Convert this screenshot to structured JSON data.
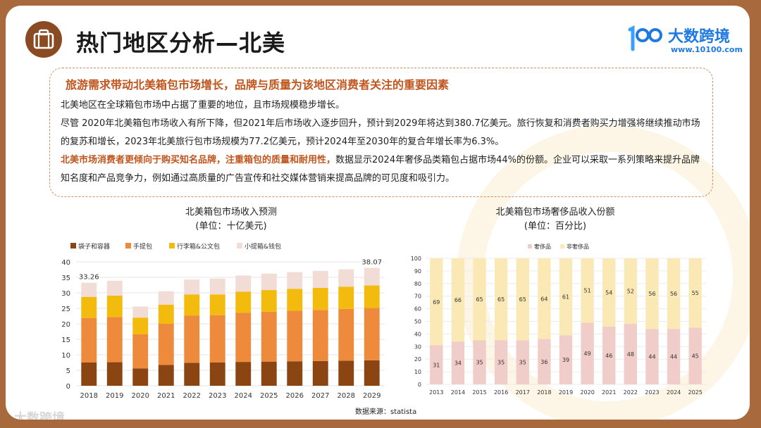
{
  "page_title": "热门地区分析—北美",
  "logo": {
    "name": "大数跨境",
    "url": "www.10100.com"
  },
  "watermark": "大数跨境",
  "insight": {
    "heading": "旅游需求带动北美箱包市场增长，品牌与质量为该地区消费者关注的重要因素",
    "p1": "北美地区在全球箱包市场中占据了重要的地位，且市场规模稳步增长。",
    "p2": "尽管 2020年北美箱包市场收入有所下降，但2021年后市场收入逐步回升，预计到2029年将达到380.7亿美元。旅行恢复和消费者购买力增强将继续推动市场的复苏和增长，2023年北美旅行包市场规模为77.2亿美元，预计2024年至2030年的复合年增长率为6.3%。",
    "p3_highlight": "北美市场消费者更倾向于购买知名品牌，注重箱包的质量和耐用性，",
    "p3_rest": "数据显示2024年奢侈品类箱包占据市场44%的份额。企业可以采取一系列策略来提升品牌知名度和产品竞争力，例如通过高质量的广告宣传和社交媒体营销来提高品牌的可见度和吸引力。"
  },
  "source": "数据来源：statista",
  "colors": {
    "brown": "#8b4513",
    "orange": "#ee8a3c",
    "gold": "#f2bb0d",
    "pink": "#f2dcd6",
    "luxury": "#f0cdc8",
    "non_luxury": "#fbe9b5",
    "accent": "#c0551d"
  },
  "chart_data": [
    {
      "type": "bar",
      "stacked": true,
      "title": "北美箱包市场收入预测",
      "subtitle": "(单位：十亿美元)",
      "categories": [
        "2018",
        "2019",
        "2020",
        "2021",
        "2022",
        "2023",
        "2024",
        "2025",
        "2026",
        "2027",
        "2028",
        "2029"
      ],
      "series": [
        {
          "name": "袋子和容器",
          "values": [
            7.5,
            7.6,
            5.6,
            6.7,
            7.4,
            7.5,
            7.7,
            7.8,
            7.9,
            8.0,
            8.1,
            8.2
          ]
        },
        {
          "name": "手提包",
          "values": [
            14.4,
            14.6,
            11.0,
            13.3,
            15.3,
            15.3,
            15.9,
            16.1,
            16.3,
            16.5,
            16.7,
            16.9
          ]
        },
        {
          "name": "行李箱&公文包",
          "values": [
            6.8,
            6.9,
            5.4,
            6.2,
            6.8,
            6.7,
            6.8,
            7.0,
            7.1,
            7.1,
            7.2,
            7.3
          ]
        },
        {
          "name": "小提箱&钱包",
          "values": [
            4.56,
            4.8,
            3.6,
            4.3,
            4.8,
            5.1,
            5.2,
            5.3,
            5.4,
            5.5,
            5.6,
            5.67
          ]
        }
      ],
      "total_labels": [
        {
          "category": "2018",
          "text": "33.26"
        },
        {
          "category": "2029",
          "text": "38.07"
        }
      ],
      "ylim": [
        0,
        40
      ],
      "yticks": [
        0,
        5,
        10,
        15,
        20,
        25,
        30,
        35,
        40
      ],
      "grid": true
    },
    {
      "type": "bar",
      "stacked": true,
      "percent": true,
      "title": "北美箱包市场奢侈品收入份额",
      "subtitle": "(单位：百分比)",
      "categories": [
        "2013",
        "2014",
        "2015",
        "2016",
        "2017",
        "2018",
        "2019",
        "2020",
        "2021",
        "2022",
        "2023",
        "2024",
        "2025"
      ],
      "series": [
        {
          "name": "奢侈品",
          "values": [
            31,
            34,
            35,
            35,
            35,
            36,
            39,
            49,
            46,
            48,
            44,
            44,
            45
          ]
        },
        {
          "name": "非奢侈品",
          "values": [
            69,
            66,
            65,
            65,
            65,
            64,
            61,
            51,
            54,
            52,
            56,
            56,
            55
          ]
        }
      ],
      "ylim": [
        0,
        100
      ],
      "yticks": [
        0,
        10,
        20,
        30,
        40,
        50,
        60,
        70,
        80,
        90,
        100
      ],
      "grid": true
    }
  ]
}
